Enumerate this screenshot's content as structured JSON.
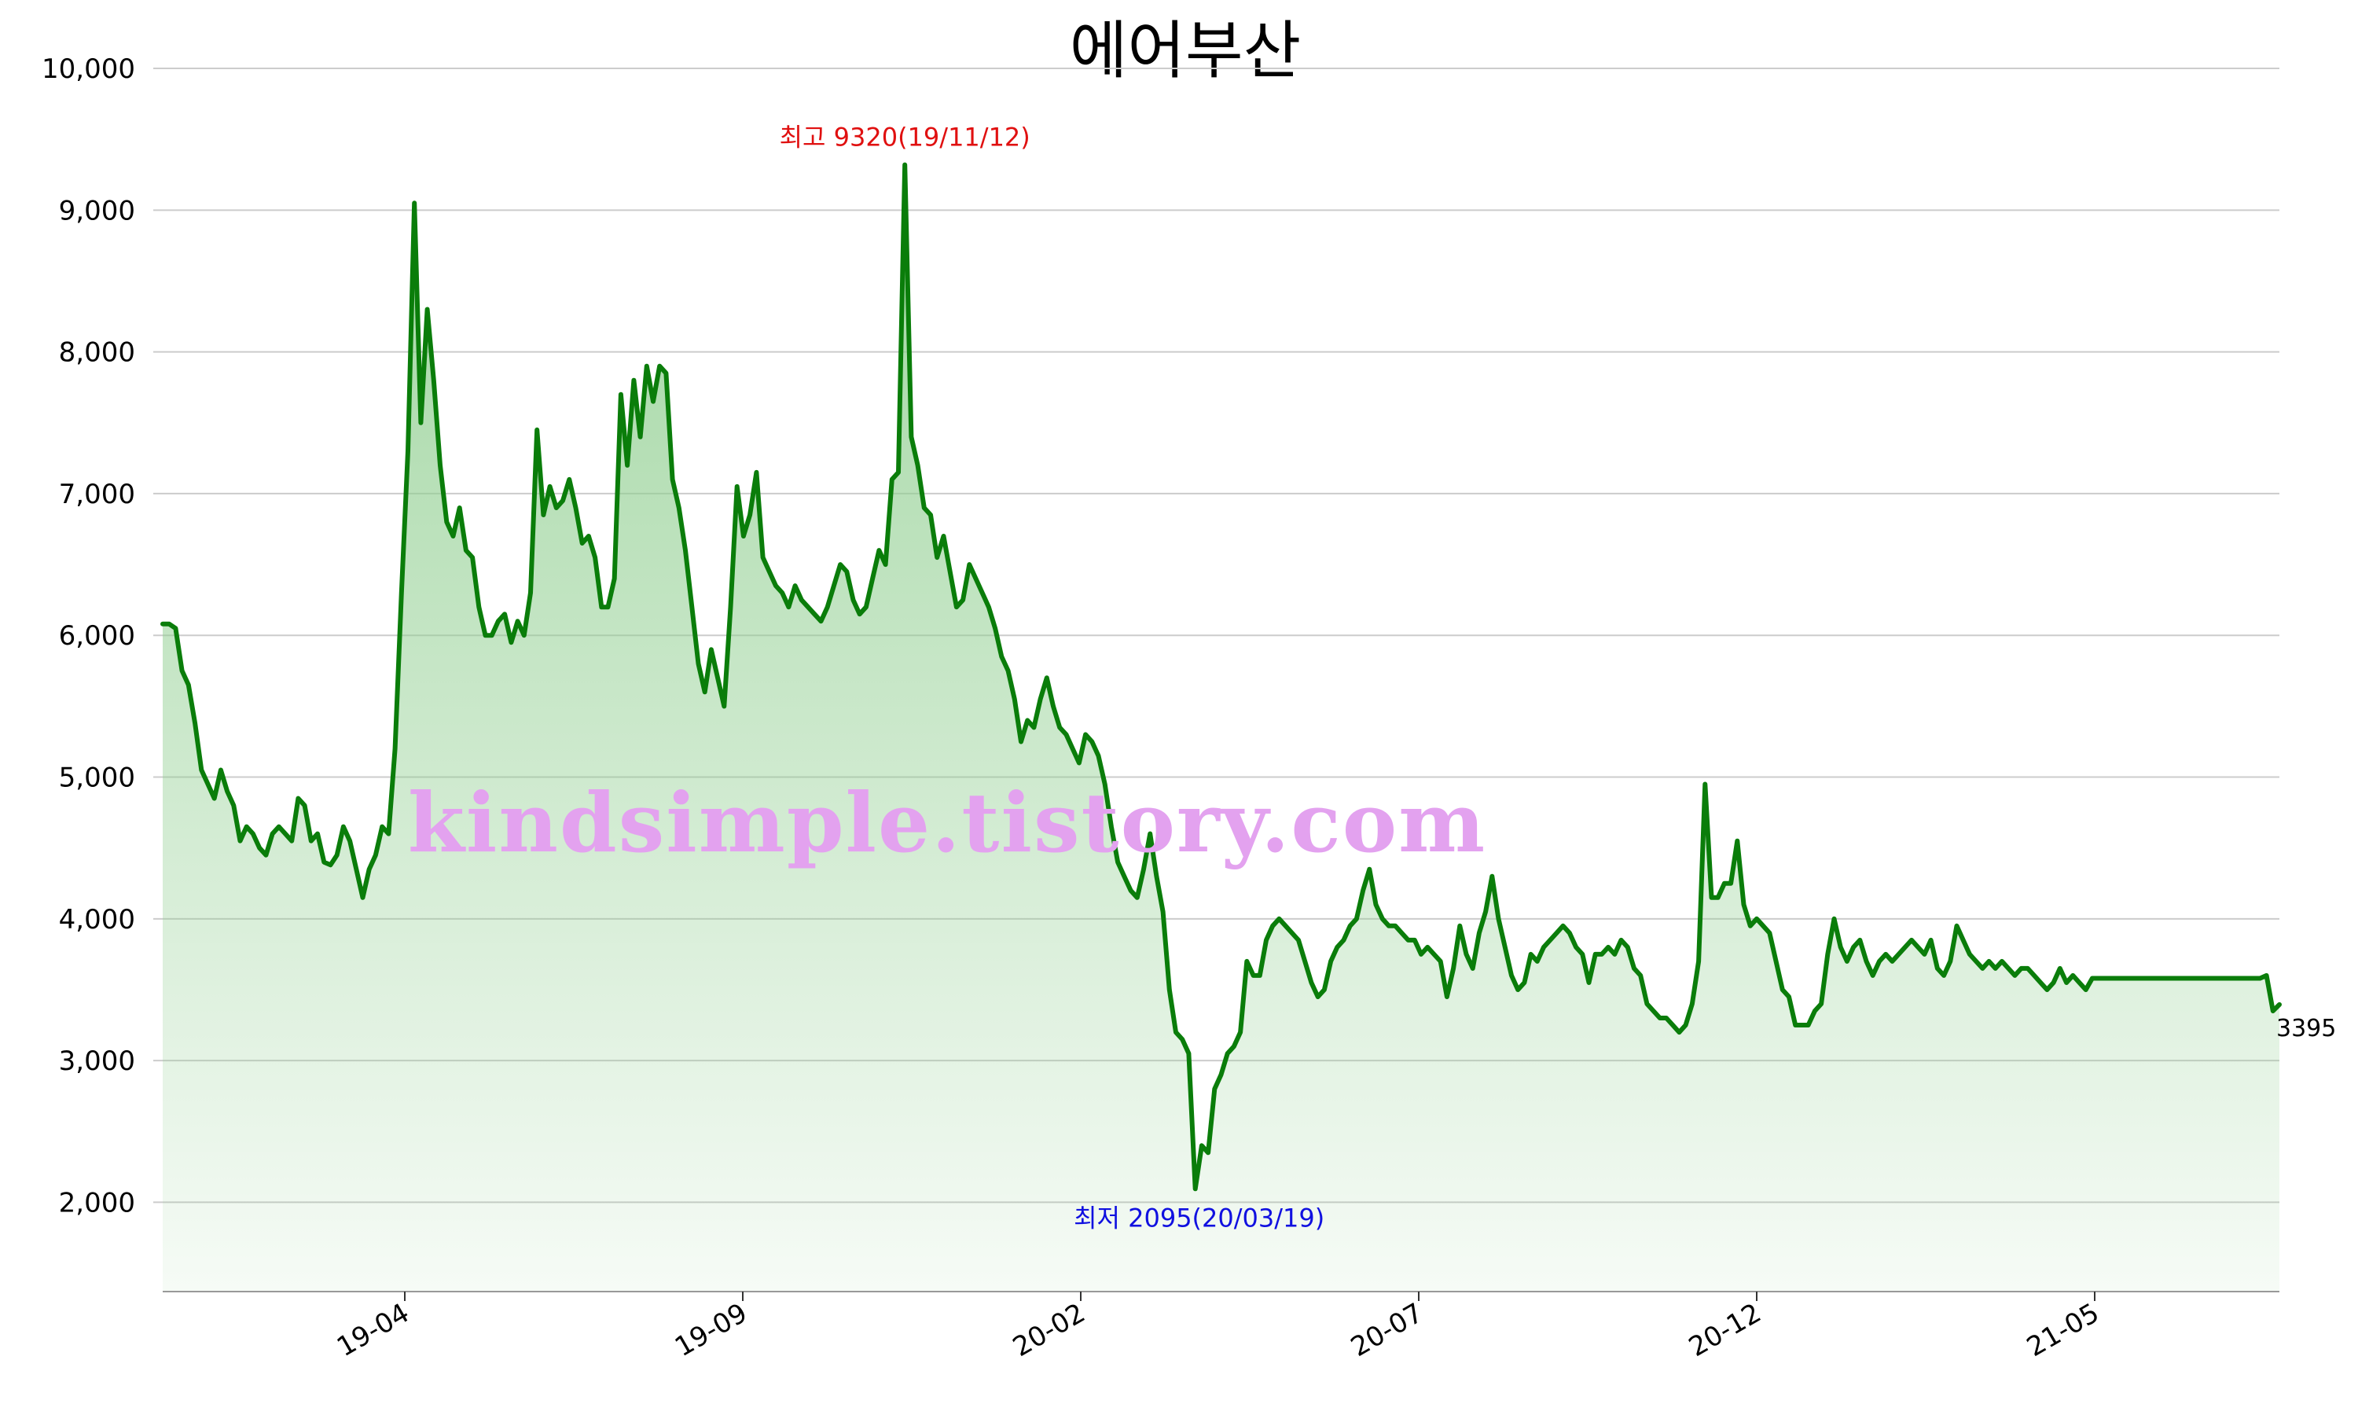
{
  "title": "에어부산",
  "watermark": "kindsimple.tistory.com",
  "colors": {
    "line": "#0a7d0a",
    "fill_top": "#8fce8f",
    "grid": "#cccccc",
    "max_annotation": "#e01010",
    "min_annotation": "#1010e0",
    "watermark": "#e3a2ef"
  },
  "chart_data": {
    "type": "area",
    "title": "에어부산",
    "xlabel": "",
    "ylabel": "",
    "x_ticks": [
      "19-04",
      "19-09",
      "20-02",
      "20-07",
      "20-12",
      "21-05"
    ],
    "y_ticks": [
      "2,000",
      "3,000",
      "4,000",
      "5,000",
      "6,000",
      "7,000",
      "8,000",
      "9,000",
      "10,000"
    ],
    "y_tick_values": [
      2000,
      3000,
      4000,
      5000,
      6000,
      7000,
      8000,
      9000,
      10000
    ],
    "ylim": [
      1370,
      10150
    ],
    "grid": "horizontal",
    "annotations": {
      "max_label": "최고 9320(19/11/12)",
      "min_label": "최저 2095(20/03/19)",
      "last_label": "3395"
    },
    "series": [
      {
        "values": [
          6080,
          6080,
          6050,
          5750,
          5650,
          5380,
          5050,
          4950,
          4850,
          5050,
          4900,
          4800,
          4550,
          4650,
          4600,
          4500,
          4450,
          4600,
          4650,
          4600,
          4550,
          4850,
          4800,
          4550,
          4600,
          4400,
          4380,
          4450,
          4650,
          4550,
          4350,
          4150,
          4350,
          4450,
          4650,
          4600,
          5200,
          6300,
          7300,
          9050,
          7500,
          8300,
          7800,
          7200,
          6800,
          6700,
          6900,
          6600,
          6550,
          6200,
          6000,
          6000,
          6100,
          6150,
          5950,
          6100,
          6000,
          6300,
          7450,
          6850,
          7050,
          6900,
          6950,
          7100,
          6900,
          6650,
          6700,
          6550,
          6200,
          6200,
          6400,
          7700,
          7200,
          7800,
          7400,
          7900,
          7650,
          7900,
          7850,
          7100,
          6900,
          6600,
          6200,
          5800,
          5600,
          5900,
          5700,
          5500,
          6200,
          7050,
          6700,
          6850,
          7150,
          6550,
          6450,
          6350,
          6300,
          6200,
          6350,
          6250,
          6200,
          6150,
          6100,
          6200,
          6350,
          6500,
          6450,
          6250,
          6150,
          6200,
          6400,
          6600,
          6500,
          7100,
          7150,
          9320,
          7400,
          7200,
          6900,
          6850,
          6550,
          6700,
          6450,
          6200,
          6250,
          6500,
          6400,
          6300,
          6200,
          6050,
          5850,
          5750,
          5550,
          5250,
          5400,
          5350,
          5550,
          5700,
          5500,
          5350,
          5300,
          5200,
          5100,
          5300,
          5250,
          5150,
          4950,
          4650,
          4400,
          4300,
          4200,
          4150,
          4350,
          4600,
          4300,
          4050,
          3500,
          3200,
          3150,
          3050,
          2095,
          2400,
          2350,
          2800,
          2900,
          3050,
          3100,
          3200,
          3700,
          3600,
          3600,
          3850,
          3950,
          4000,
          3950,
          3900,
          3850,
          3700,
          3550,
          3450,
          3500,
          3700,
          3800,
          3850,
          3950,
          4000,
          4200,
          4350,
          4100,
          4000,
          3950,
          3950,
          3900,
          3850,
          3850,
          3750,
          3800,
          3750,
          3700,
          3450,
          3650,
          3950,
          3750,
          3650,
          3900,
          4050,
          4300,
          4000,
          3800,
          3600,
          3500,
          3550,
          3750,
          3700,
          3800,
          3850,
          3900,
          3950,
          3900,
          3800,
          3750,
          3550,
          3750,
          3750,
          3800,
          3750,
          3850,
          3800,
          3650,
          3600,
          3400,
          3350,
          3300,
          3300,
          3250,
          3200,
          3250,
          3400,
          3700,
          4950,
          4150,
          4150,
          4250,
          4250,
          4550,
          4100,
          3950,
          4000,
          3950,
          3900,
          3700,
          3500,
          3450,
          3250,
          3250,
          3250,
          3350,
          3400,
          3750,
          4000,
          3800,
          3700,
          3800,
          3850,
          3700,
          3600,
          3700,
          3750,
          3700,
          3750,
          3800,
          3850,
          3800,
          3750,
          3850,
          3650,
          3600,
          3700,
          3950,
          3850,
          3750,
          3700,
          3650,
          3700,
          3650,
          3700,
          3650,
          3600,
          3650,
          3650,
          3600,
          3550,
          3500,
          3550,
          3650,
          3550,
          3600,
          3550,
          3500,
          3580,
          3580,
          3580,
          3580,
          3580,
          3580,
          3580,
          3580,
          3580,
          3580,
          3580,
          3580,
          3580,
          3580,
          3580,
          3580,
          3580,
          3580,
          3580,
          3580,
          3580,
          3580,
          3580,
          3580,
          3580,
          3580,
          3580,
          3600,
          3350,
          3395
        ]
      }
    ]
  }
}
